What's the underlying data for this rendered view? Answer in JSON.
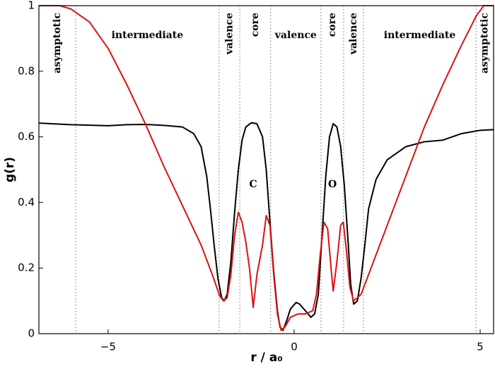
{
  "chart_data": {
    "type": "line",
    "xlabel": "r / a₀",
    "ylabel": "g(r)",
    "xlim": [
      -6.86,
      5.36
    ],
    "ylim": [
      0,
      1
    ],
    "xticks": [
      {
        "value": -5,
        "label": "−5"
      },
      0,
      5
    ],
    "yticks": [
      0,
      0.2,
      0.4,
      0.6,
      0.8,
      1
    ],
    "grid": false,
    "boundaries": [
      -5.87,
      -2.02,
      -1.46,
      -0.63,
      0.72,
      1.33,
      1.86,
      4.89
    ],
    "regions": [
      "asymptotic",
      "intermediate",
      "valence",
      "core",
      "valence",
      "core",
      "valence",
      "intermediate",
      "asymptotic"
    ],
    "annotations": [
      {
        "text": "C",
        "x": -1.1,
        "y": 0.455
      },
      {
        "text": "O",
        "x": 1.03,
        "y": 0.455
      }
    ],
    "series": [
      {
        "color": "#000000",
        "x": [
          -6.86,
          -6,
          -5,
          -4.5,
          -4,
          -3.5,
          -3,
          -2.7,
          -2.5,
          -2.35,
          -2.25,
          -2.15,
          -2.05,
          -1.95,
          -1.88,
          -1.8,
          -1.7,
          -1.6,
          -1.5,
          -1.4,
          -1.3,
          -1.15,
          -1.0,
          -0.85,
          -0.75,
          -0.65,
          -0.55,
          -0.45,
          -0.38,
          -0.3,
          -0.2,
          -0.1,
          0.05,
          0.15,
          0.3,
          0.45,
          0.55,
          0.65,
          0.75,
          0.85,
          0.95,
          1.05,
          1.15,
          1.25,
          1.35,
          1.45,
          1.52,
          1.6,
          1.7,
          1.8,
          1.9,
          2.0,
          2.2,
          2.5,
          3.0,
          3.5,
          4.0,
          4.5,
          5.0,
          5.36
        ],
        "values": [
          0.642,
          0.637,
          0.634,
          0.637,
          0.638,
          0.635,
          0.63,
          0.61,
          0.57,
          0.48,
          0.38,
          0.27,
          0.17,
          0.11,
          0.1,
          0.12,
          0.22,
          0.37,
          0.5,
          0.59,
          0.63,
          0.643,
          0.64,
          0.6,
          0.5,
          0.34,
          0.19,
          0.07,
          0.02,
          0.01,
          0.04,
          0.075,
          0.095,
          0.09,
          0.07,
          0.05,
          0.06,
          0.12,
          0.3,
          0.48,
          0.6,
          0.64,
          0.63,
          0.57,
          0.45,
          0.28,
          0.15,
          0.09,
          0.1,
          0.17,
          0.27,
          0.38,
          0.47,
          0.53,
          0.57,
          0.585,
          0.59,
          0.61,
          0.62,
          0.622
        ]
      },
      {
        "color": "#dd1111",
        "x": [
          -6.86,
          -6.3,
          -6.0,
          -5.5,
          -5,
          -4.5,
          -4.0,
          -3.5,
          -3.0,
          -2.5,
          -2.2,
          -2.0,
          -1.9,
          -1.8,
          -1.7,
          -1.6,
          -1.5,
          -1.4,
          -1.3,
          -1.2,
          -1.1,
          -1.0,
          -0.85,
          -0.75,
          -0.65,
          -0.55,
          -0.45,
          -0.35,
          -0.25,
          -0.1,
          0.1,
          0.3,
          0.5,
          0.6,
          0.7,
          0.8,
          0.9,
          1.0,
          1.05,
          1.15,
          1.25,
          1.32,
          1.4,
          1.5,
          1.6,
          1.8,
          2.0,
          2.5,
          3.0,
          3.5,
          4.0,
          4.5,
          4.9,
          5.1,
          5.36
        ],
        "values": [
          1.0,
          1.0,
          0.99,
          0.95,
          0.87,
          0.76,
          0.64,
          0.51,
          0.39,
          0.27,
          0.18,
          0.115,
          0.1,
          0.11,
          0.18,
          0.3,
          0.37,
          0.34,
          0.28,
          0.2,
          0.08,
          0.18,
          0.27,
          0.36,
          0.33,
          0.18,
          0.06,
          0.01,
          0.02,
          0.05,
          0.06,
          0.06,
          0.07,
          0.12,
          0.24,
          0.34,
          0.32,
          0.19,
          0.13,
          0.22,
          0.33,
          0.34,
          0.26,
          0.14,
          0.1,
          0.12,
          0.18,
          0.33,
          0.48,
          0.63,
          0.76,
          0.88,
          0.97,
          1.0,
          1.0
        ]
      }
    ]
  }
}
